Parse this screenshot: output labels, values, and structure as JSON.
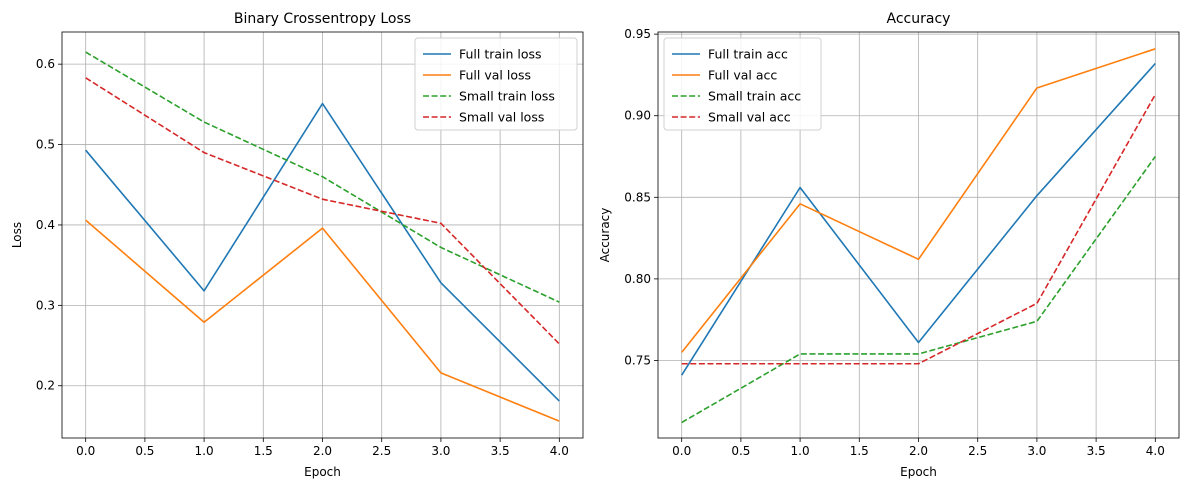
{
  "chart_data": [
    {
      "type": "line",
      "title": "Binary Crossentropy Loss",
      "xlabel": "Epoch",
      "ylabel": "Loss",
      "xlim": [
        -0.2,
        4.2
      ],
      "ylim": [
        0.135,
        0.64
      ],
      "xticks": [
        "0.0",
        "0.5",
        "1.0",
        "1.5",
        "2.0",
        "2.5",
        "3.0",
        "3.5",
        "4.0"
      ],
      "yticks": [
        "0.2",
        "0.3",
        "0.4",
        "0.5",
        "0.6"
      ],
      "grid": true,
      "legend_position": "top-right",
      "x": [
        0,
        1,
        2,
        3,
        4
      ],
      "series": [
        {
          "name": "Full train loss",
          "values": [
            0.493,
            0.318,
            0.551,
            0.328,
            0.181
          ],
          "color": "#1f77b4",
          "dash": "solid"
        },
        {
          "name": "Full val loss",
          "values": [
            0.406,
            0.279,
            0.396,
            0.216,
            0.156
          ],
          "color": "#ff7f0e",
          "dash": "solid"
        },
        {
          "name": "Small train loss",
          "values": [
            0.615,
            0.528,
            0.46,
            0.372,
            0.304
          ],
          "color": "#2ca02c",
          "dash": "dashed"
        },
        {
          "name": "Small val loss",
          "values": [
            0.583,
            0.49,
            0.432,
            0.402,
            0.252
          ],
          "color": "#d62728",
          "dash": "dashed"
        }
      ]
    },
    {
      "type": "line",
      "title": "Accuracy",
      "xlabel": "Epoch",
      "ylabel": "Accuracy",
      "xlim": [
        -0.2,
        4.2
      ],
      "ylim": [
        0.7025,
        0.9513
      ],
      "xticks": [
        "0.0",
        "0.5",
        "1.0",
        "1.5",
        "2.0",
        "2.5",
        "3.0",
        "3.5",
        "4.0"
      ],
      "yticks": [
        "0.75",
        "0.80",
        "0.85",
        "0.90",
        "0.95"
      ],
      "grid": true,
      "legend_position": "top-left",
      "x": [
        0,
        1,
        2,
        3,
        4
      ],
      "series": [
        {
          "name": "Full train acc",
          "values": [
            0.741,
            0.856,
            0.761,
            0.851,
            0.932
          ],
          "color": "#1f77b4",
          "dash": "solid"
        },
        {
          "name": "Full val acc",
          "values": [
            0.755,
            0.846,
            0.812,
            0.917,
            0.941
          ],
          "color": "#ff7f0e",
          "dash": "solid"
        },
        {
          "name": "Small train acc",
          "values": [
            0.712,
            0.754,
            0.754,
            0.774,
            0.875
          ],
          "color": "#2ca02c",
          "dash": "dashed"
        },
        {
          "name": "Small val acc",
          "values": [
            0.748,
            0.748,
            0.748,
            0.785,
            0.913
          ],
          "color": "#d62728",
          "dash": "dashed"
        }
      ]
    }
  ]
}
